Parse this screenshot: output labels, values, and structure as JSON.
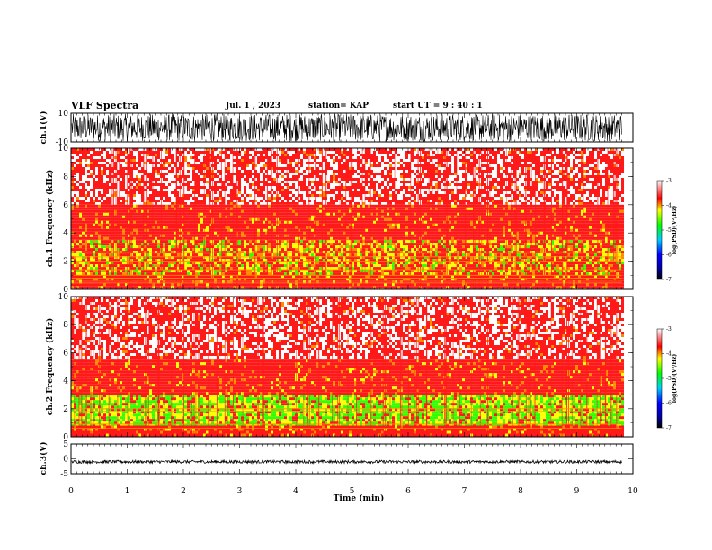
{
  "header": {
    "title": "VLF Spectra",
    "date": "Jul. 1 , 2023",
    "station": "station= KAP",
    "start_ut": "start UT = 9 : 40 : 1"
  },
  "colors": {
    "ch1_wave": "#000000",
    "spec_bg": "#ffffff",
    "spec_red": "#ff1a1a",
    "spec_orange": "#ff8a00",
    "spec_yellow": "#ffff00",
    "spec_green": "#33ff00",
    "frame": "#000000"
  },
  "chart_data": [
    {
      "id": "ch1_waveform",
      "type": "line",
      "ylabel": "ch.1(V)",
      "ylim": [
        -10,
        10
      ],
      "yticks": [
        "10",
        "-10"
      ],
      "description": "dense noise waveform oscillating roughly between -10 and 10 V over the full 0-9.8 min span"
    },
    {
      "id": "ch1_spectrogram",
      "type": "heatmap",
      "ylabel": "ch.1 Frequency (kHz)",
      "ylim": [
        0,
        10
      ],
      "yticks": [
        "0",
        "2",
        "4",
        "6",
        "8",
        "10"
      ],
      "x_range_min": [
        0,
        9.8
      ],
      "bands": [
        {
          "f_low": 0,
          "f_high": 1,
          "level": "red"
        },
        {
          "f_low": 1,
          "f_high": 3.5,
          "level": "yellow-red"
        },
        {
          "f_low": 3.5,
          "f_high": 6,
          "level": "red"
        },
        {
          "f_low": 6,
          "f_high": 10,
          "level": "sparse-red"
        }
      ],
      "lines_khz": [
        0.5,
        0.8,
        1.0,
        1.4,
        2.0,
        2.3,
        2.6
      ],
      "colorbar": {
        "label": "log(PSD)(V²/Hz)",
        "ticks": [
          "-3",
          "-4",
          "-5",
          "-6",
          "-7"
        ],
        "range": [
          -7,
          -3
        ]
      }
    },
    {
      "id": "ch2_spectrogram",
      "type": "heatmap",
      "ylabel": "ch.2 Frequency (kHz)",
      "ylim": [
        0,
        10
      ],
      "yticks": [
        "0",
        "2",
        "4",
        "6",
        "8",
        "10"
      ],
      "x_range_min": [
        0,
        9.8
      ],
      "bands": [
        {
          "f_low": 0,
          "f_high": 0.8,
          "level": "red"
        },
        {
          "f_low": 0.8,
          "f_high": 3,
          "level": "green-yellow"
        },
        {
          "f_low": 3,
          "f_high": 5.5,
          "level": "red"
        },
        {
          "f_low": 5.5,
          "f_high": 10,
          "level": "sparse-red"
        }
      ],
      "lines_khz": [
        0.6,
        0.9,
        1.8,
        2.0
      ],
      "colorbar": {
        "label": "log(PSD)(V²/Hz)",
        "ticks": [
          "-3",
          "-4",
          "-5",
          "-6",
          "-7"
        ],
        "range": [
          -7,
          -3
        ]
      }
    },
    {
      "id": "ch3_waveform",
      "type": "line",
      "ylabel": "ch.3(V)",
      "ylim": [
        -5,
        5
      ],
      "yticks": [
        "5",
        "0",
        "-5"
      ],
      "description": "narrow oscillation around -1 V (about -1.5 to -0.5 V) across 0-9.8 min",
      "center_v": -1,
      "amplitude_v": 0.5
    }
  ],
  "x_axis": {
    "label": "Time (min)",
    "range": [
      0,
      10
    ],
    "ticks": [
      "0",
      "1",
      "2",
      "3",
      "4",
      "5",
      "6",
      "7",
      "8",
      "9",
      "10"
    ],
    "data_end": 9.8
  }
}
